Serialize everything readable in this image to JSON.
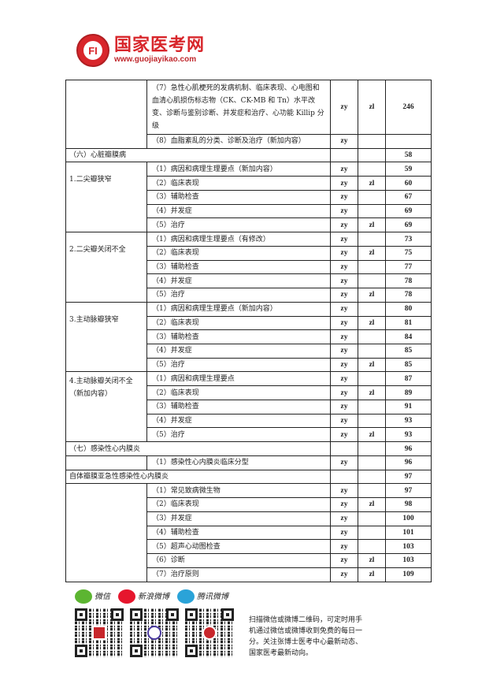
{
  "header": {
    "brand_name": "国家医考网",
    "url": "www.guojiayikao.com",
    "seal_text": "FI"
  },
  "table": {
    "top_rows": [
      {
        "item": "（7）急性心肌梗死的发病机制、临床表现、心电图和血清心肌损伤标志物（CK、CK-MB 和 Tn）水平改变、诊断与鉴别诊断、并发症和治疗、心功能 Killip 分级",
        "zy": "zy",
        "zl": "zl",
        "page": "246"
      },
      {
        "item": "（8）血脂紊乱的分类、诊断及治疗（新加内容）",
        "zy": "zy",
        "zl": "",
        "page": ""
      }
    ],
    "section6": {
      "title": "（六）心脏瓣膜病",
      "page": "58"
    },
    "groups": [
      {
        "name": "1.二尖瓣狭窄",
        "rows": [
          {
            "item": "（1）病因和病理生理要点（新加内容）",
            "zy": "zy",
            "zl": "",
            "page": "59"
          },
          {
            "item": "（2）临床表现",
            "zy": "zy",
            "zl": "zl",
            "page": "60"
          },
          {
            "item": "（3）辅助检查",
            "zy": "zy",
            "zl": "",
            "page": "67"
          },
          {
            "item": "（4）并发症",
            "zy": "zy",
            "zl": "",
            "page": "69"
          },
          {
            "item": "（5）治疗",
            "zy": "zy",
            "zl": "zl",
            "page": "69"
          }
        ]
      },
      {
        "name": "2.二尖瓣关闭不全",
        "rows": [
          {
            "item": "（1）病因和病理生理要点（有修改）",
            "zy": "zy",
            "zl": "",
            "page": "73"
          },
          {
            "item": "（2）临床表现",
            "zy": "zy",
            "zl": "zl",
            "page": "75"
          },
          {
            "item": "（3）辅助检查",
            "zy": "zy",
            "zl": "",
            "page": "77"
          },
          {
            "item": "（4）并发症",
            "zy": "zy",
            "zl": "",
            "page": "78"
          },
          {
            "item": "（5）治疗",
            "zy": "zy",
            "zl": "zl",
            "page": "78"
          }
        ]
      },
      {
        "name": "3.主动脉瓣狭窄",
        "rows": [
          {
            "item": "（1）病因和病理生理要点（新加内容）",
            "zy": "zy",
            "zl": "",
            "page": "80"
          },
          {
            "item": "（2）临床表现",
            "zy": "zy",
            "zl": "zl",
            "page": "81"
          },
          {
            "item": "（3）辅助检查",
            "zy": "zy",
            "zl": "",
            "page": "84"
          },
          {
            "item": "（4）并发症",
            "zy": "zy",
            "zl": "",
            "page": "85"
          },
          {
            "item": "（5）治疗",
            "zy": "zy",
            "zl": "zl",
            "page": "85"
          }
        ]
      },
      {
        "name": "4.主动脉瓣关闭不全（新加内容）",
        "rows": [
          {
            "item": "（1）病因和病理生理要点",
            "zy": "zy",
            "zl": "",
            "page": "87"
          },
          {
            "item": "（2）临床表现",
            "zy": "zy",
            "zl": "zl",
            "page": "89"
          },
          {
            "item": "（3）辅助检查",
            "zy": "zy",
            "zl": "",
            "page": "91"
          },
          {
            "item": "（4）并发症",
            "zy": "zy",
            "zl": "",
            "page": "93"
          },
          {
            "item": "（5）治疗",
            "zy": "zy",
            "zl": "zl",
            "page": "93"
          }
        ]
      }
    ],
    "section7": {
      "title": "（七）感染性心内膜炎",
      "page": "96"
    },
    "section7_row": {
      "item": "（1）感染性心内膜炎临床分型",
      "zy": "zy",
      "zl": "",
      "page": "96"
    },
    "subsection": {
      "title": "自体瓣膜亚急性感染性心内膜炎",
      "page": "97"
    },
    "sub_rows": [
      {
        "item": "（1）常见致病微生物",
        "zy": "zy",
        "zl": "",
        "page": "97"
      },
      {
        "item": "（2）临床表现",
        "zy": "zy",
        "zl": "zl",
        "page": "98"
      },
      {
        "item": "（3）并发症",
        "zy": "zy",
        "zl": "",
        "page": "100"
      },
      {
        "item": "（4）辅助检查",
        "zy": "zy",
        "zl": "",
        "page": "101"
      },
      {
        "item": "（5）超声心动图检查",
        "zy": "zy",
        "zl": "",
        "page": "103"
      },
      {
        "item": "（6）诊断",
        "zy": "zy",
        "zl": "zl",
        "page": "103"
      },
      {
        "item": "（7）治疗原则",
        "zy": "zy",
        "zl": "zl",
        "page": "109"
      }
    ]
  },
  "footer": {
    "sns": [
      {
        "label": "微信",
        "icon": "wechat-icon",
        "color": "#5cb531"
      },
      {
        "label": "新浪微博",
        "icon": "weibo-icon",
        "color": "#e6162d"
      },
      {
        "label": "腾讯微博",
        "icon": "tencent-weibo-icon",
        "color": "#2aa3d8"
      }
    ],
    "note": "扫描微信或微博二维码，可定时用手机通过微信或微博收到免费的每日一分。关注张博士医考中心最新动态、国家医考最新动向。"
  }
}
